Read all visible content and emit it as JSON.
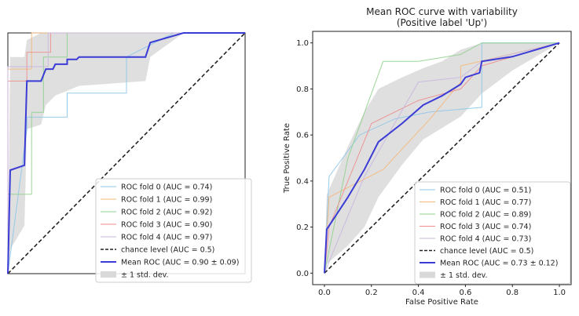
{
  "colors": {
    "fold0": "#8ec7ea",
    "fold1": "#f5b87a",
    "fold2": "#8fd18f",
    "fold3": "#ee8e8e",
    "fold4": "#c8b6de",
    "mean": "#3b3bd6",
    "band": "#d9d9d9",
    "chance": "#222222"
  },
  "chart_data": [
    {
      "type": "line",
      "title": "",
      "xlim": [
        0,
        1
      ],
      "ylim": [
        0,
        1
      ],
      "legend_position": "lower-right",
      "series": [
        {
          "name": "ROC fold 0 (AUC = 0.74)",
          "color_key": "fold0",
          "x": [
            0,
            0.08,
            0.08,
            0.25,
            0.25,
            0.5,
            0.5,
            0.7,
            1
          ],
          "y": [
            0,
            0.6,
            0.65,
            0.65,
            0.75,
            0.75,
            0.9,
            1,
            1
          ]
        },
        {
          "name": "ROC fold 1 (AUC = 0.99)",
          "color_key": "fold1",
          "x": [
            0,
            0,
            0.1,
            0.1,
            1
          ],
          "y": [
            0,
            0.85,
            0.85,
            1,
            1
          ]
        },
        {
          "name": "ROC fold 2 (AUC = 0.92)",
          "color_key": "fold2",
          "x": [
            0,
            0,
            0.1,
            0.1,
            0.15,
            0.15,
            0.25,
            0.25,
            1
          ],
          "y": [
            0,
            0.33,
            0.33,
            0.67,
            0.67,
            0.9,
            0.9,
            1,
            1
          ]
        },
        {
          "name": "ROC fold 3 (AUC = 0.90)",
          "color_key": "fold3",
          "x": [
            0,
            0,
            0.08,
            0.08,
            0.18,
            0.18,
            1
          ],
          "y": [
            0,
            0.8,
            0.8,
            0.92,
            0.92,
            1,
            1
          ]
        },
        {
          "name": "ROC fold 4 (AUC = 0.97)",
          "color_key": "fold4",
          "x": [
            0,
            0,
            0.17,
            0.17,
            1
          ],
          "y": [
            0,
            0.86,
            0.86,
            1,
            1
          ]
        }
      ],
      "chance": {
        "name": "chance level (AUC = 0.5)",
        "x": [
          0,
          1
        ],
        "y": [
          0,
          1
        ]
      },
      "mean": {
        "name": "Mean ROC (AUC = 0.90 ± 0.09)",
        "x": [
          0,
          0.01,
          0.07,
          0.08,
          0.14,
          0.16,
          0.19,
          0.2,
          0.25,
          0.25,
          0.29,
          0.3,
          0.58,
          0.6,
          0.74,
          1
        ],
        "y": [
          0,
          0.43,
          0.45,
          0.8,
          0.8,
          0.85,
          0.85,
          0.87,
          0.87,
          0.89,
          0.89,
          0.9,
          0.9,
          0.96,
          1,
          1
        ]
      },
      "band": {
        "name": "± 1 std. dev.",
        "x": [
          0,
          0.01,
          0.07,
          0.08,
          0.14,
          0.16,
          0.2,
          0.25,
          0.3,
          0.58,
          0.6,
          0.74,
          1
        ],
        "upper": [
          0.1,
          0.9,
          0.9,
          0.97,
          1,
          1,
          1,
          1,
          1,
          1,
          1,
          1,
          1
        ],
        "lower": [
          0,
          0.1,
          0.2,
          0.6,
          0.62,
          0.7,
          0.74,
          0.76,
          0.78,
          0.8,
          0.9,
          1,
          1
        ]
      }
    },
    {
      "type": "line",
      "title": "Mean ROC curve with variability",
      "subtitle": "(Positive label 'Up')",
      "xlabel": "False Positive Rate",
      "ylabel": "True Positive Rate",
      "xlim": [
        -0.05,
        1.05
      ],
      "ylim": [
        -0.05,
        1.05
      ],
      "xticks": [
        "0.0",
        "0.2",
        "0.4",
        "0.6",
        "0.8",
        "1.0"
      ],
      "yticks": [
        "0.0",
        "0.2",
        "0.4",
        "0.6",
        "0.8",
        "1.0"
      ],
      "xtick_values": [
        0,
        0.2,
        0.4,
        0.6,
        0.8,
        1
      ],
      "ytick_values": [
        0,
        0.2,
        0.4,
        0.6,
        0.8,
        1
      ],
      "legend_position": "lower-right",
      "series": [
        {
          "name": "ROC fold 0 (AUC = 0.51)",
          "color_key": "fold0",
          "x": [
            0,
            0.02,
            0.15,
            0.3,
            0.45,
            0.67,
            0.67,
            1
          ],
          "y": [
            0,
            0.42,
            0.6,
            0.67,
            0.7,
            0.72,
            1,
            1
          ]
        },
        {
          "name": "ROC fold 1 (AUC = 0.77)",
          "color_key": "fold1",
          "x": [
            0,
            0.02,
            0.25,
            0.45,
            0.58,
            0.58,
            1
          ],
          "y": [
            0,
            0.33,
            0.45,
            0.67,
            0.83,
            0.9,
            1
          ]
        },
        {
          "name": "ROC fold 2 (AUC = 0.89)",
          "color_key": "fold2",
          "x": [
            0,
            0.1,
            0.25,
            0.4,
            0.58,
            0.67,
            1
          ],
          "y": [
            0,
            0.5,
            0.92,
            0.92,
            0.95,
            1,
            1
          ]
        },
        {
          "name": "ROC fold 3 (AUC = 0.74)",
          "color_key": "fold3",
          "x": [
            0,
            0.02,
            0.2,
            0.4,
            0.58,
            0.67,
            1
          ],
          "y": [
            0,
            0.2,
            0.65,
            0.75,
            0.8,
            0.9,
            1
          ]
        },
        {
          "name": "ROC fold 4 (AUC = 0.73)",
          "color_key": "fold4",
          "x": [
            0,
            0.02,
            0.17,
            0.4,
            0.58,
            0.67,
            1
          ],
          "y": [
            0,
            0.05,
            0.42,
            0.83,
            0.85,
            0.92,
            1
          ]
        }
      ],
      "chance": {
        "name": "chance level (AUC = 0.5)",
        "x": [
          0,
          1
        ],
        "y": [
          0,
          1
        ]
      },
      "mean": {
        "name": "Mean ROC (AUC = 0.73 ± 0.12)",
        "x": [
          0,
          0.01,
          0.1,
          0.17,
          0.23,
          0.33,
          0.42,
          0.5,
          0.58,
          0.6,
          0.66,
          0.67,
          0.8,
          1
        ],
        "y": [
          0,
          0.19,
          0.33,
          0.45,
          0.57,
          0.65,
          0.73,
          0.77,
          0.82,
          0.85,
          0.87,
          0.92,
          0.94,
          1
        ]
      },
      "band": {
        "name": "± 1 std. dev.",
        "x": [
          0,
          0.01,
          0.1,
          0.17,
          0.23,
          0.33,
          0.42,
          0.5,
          0.58,
          0.67,
          0.8,
          1
        ],
        "upper": [
          0.02,
          0.34,
          0.55,
          0.7,
          0.8,
          0.85,
          0.89,
          0.92,
          0.97,
          1,
          1,
          1
        ],
        "lower": [
          0,
          0.04,
          0.12,
          0.2,
          0.33,
          0.47,
          0.58,
          0.63,
          0.68,
          0.78,
          0.88,
          1
        ]
      }
    }
  ]
}
